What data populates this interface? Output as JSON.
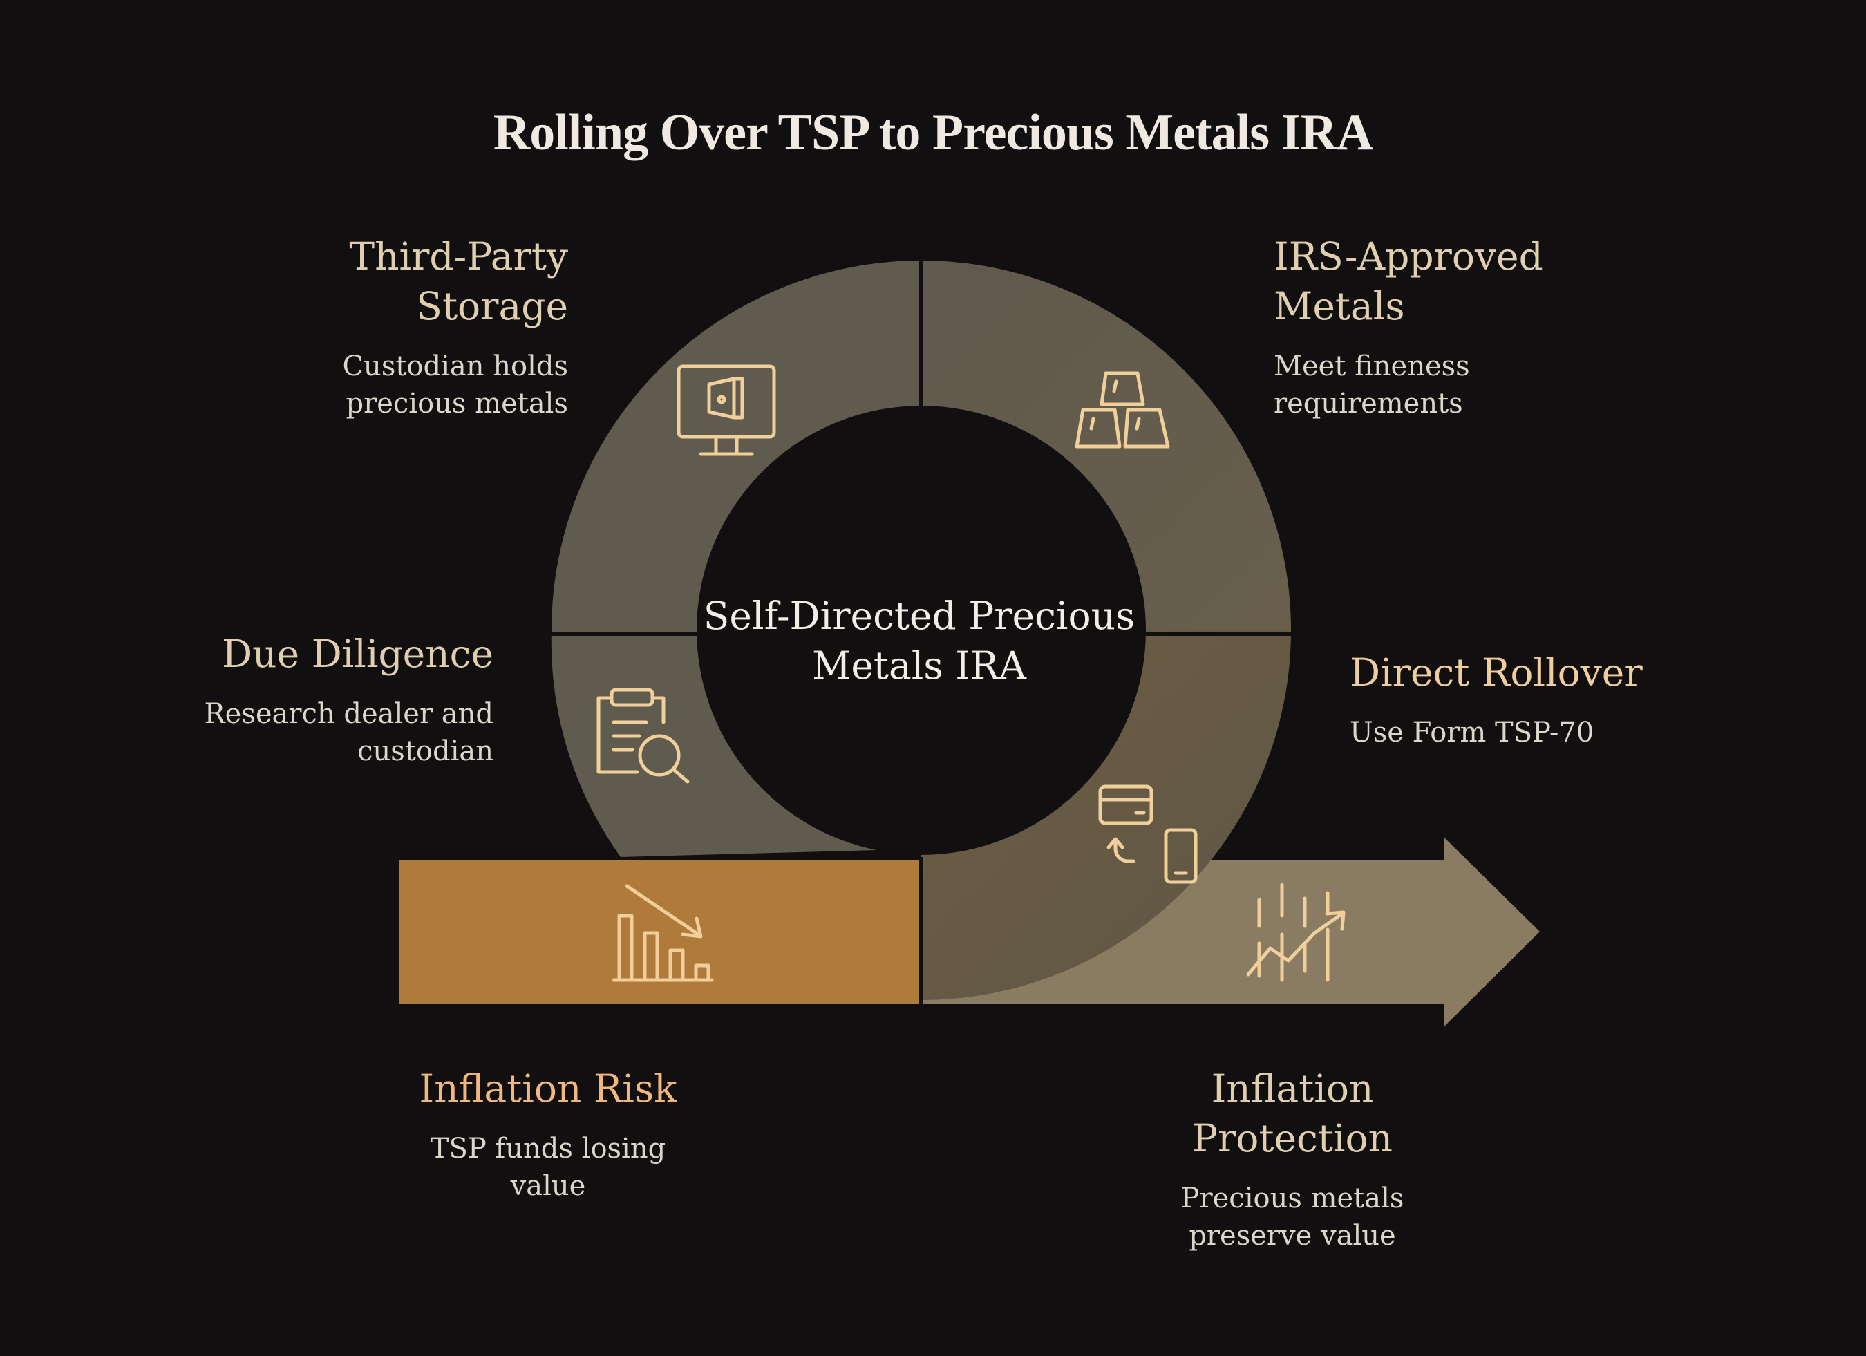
{
  "title": "Rolling Over TSP to Precious Metals IRA",
  "center_label": "Self-Directed Precious Metals IRA",
  "segments": [
    {
      "heading": "Third-Party Storage",
      "description": "Custodian holds precious metals",
      "icon": "monitor-vault-icon"
    },
    {
      "heading": "IRS-Approved Metals",
      "description": "Meet fineness requirements",
      "icon": "gold-bars-icon"
    },
    {
      "heading": "Due Diligence",
      "description": "Research dealer and custodian",
      "icon": "clipboard-search-icon"
    },
    {
      "heading": "Direct Rollover",
      "description": "Use Form TSP-70",
      "icon": "card-to-phone-transfer-icon"
    }
  ],
  "start": {
    "heading": "Inflation Risk",
    "description": "TSP funds losing value",
    "icon": "declining-bar-chart-icon"
  },
  "end": {
    "heading": "Inflation Protection",
    "description": "Precious metals preserve value",
    "icon": "rising-chart-icon"
  },
  "colors": {
    "background": "#110f10",
    "ring_gray": "#5f5b4f",
    "ring_brown": "#6b5b43",
    "orange_bar": "#b07a3a",
    "arrow": "#8a7c62",
    "icon_stroke": "#f0cf9a"
  }
}
